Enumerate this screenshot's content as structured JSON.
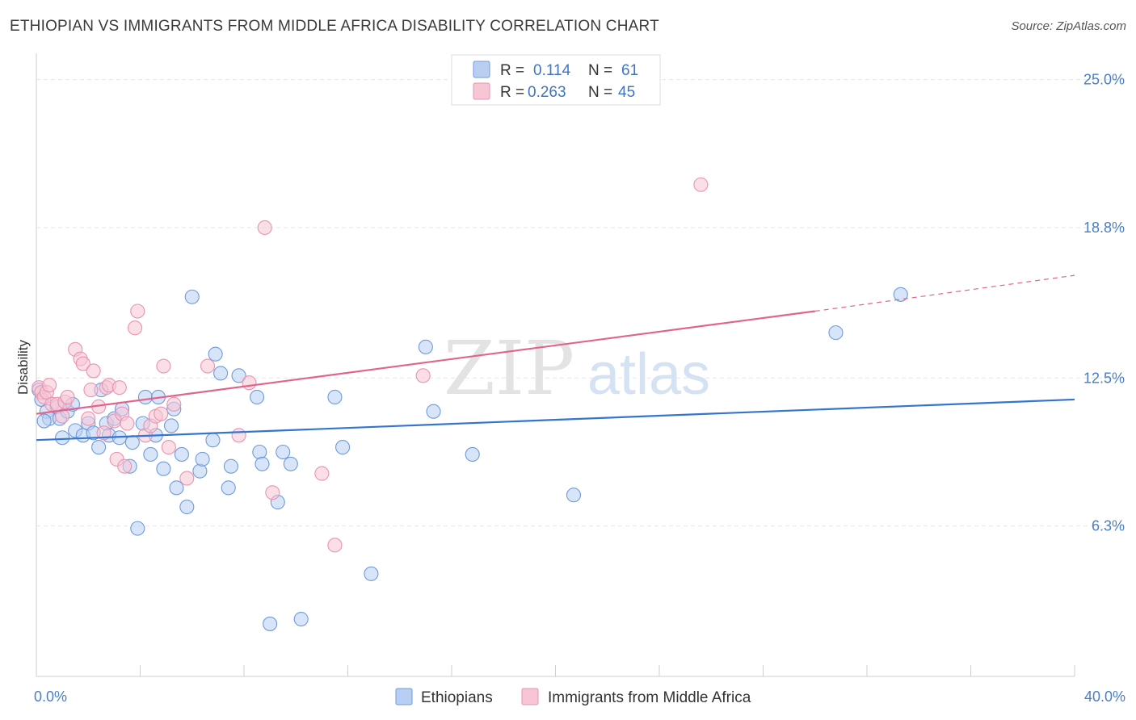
{
  "title": "ETHIOPIAN VS IMMIGRANTS FROM MIDDLE AFRICA DISABILITY CORRELATION CHART",
  "source": "Source: ZipAtlas.com",
  "watermark": {
    "zip": "ZIP",
    "atlas": "atlas"
  },
  "colors": {
    "blue_fill": "#b8cff3",
    "blue_stroke": "#6f9bd9",
    "blue_line": "#3475d0",
    "pink_fill": "#f7c5d4",
    "pink_stroke": "#ea93b0",
    "pink_line": "#e0648c",
    "tick_label": "#4a7ec7",
    "grid": "#e6e6e6"
  },
  "legend": {
    "rows": [
      {
        "r_label": "R =",
        "r_value": "0.114",
        "n_label": "N =",
        "n_value": "61"
      },
      {
        "r_label": "R =",
        "r_value": "0.263",
        "n_label": "N =",
        "n_value": "45"
      }
    ]
  },
  "bottom_legend": [
    "Ethiopians",
    "Immigrants from Middle Africa"
  ],
  "chart_data": {
    "type": "scatter",
    "title": "ETHIOPIAN VS IMMIGRANTS FROM MIDDLE AFRICA DISABILITY CORRELATION CHART",
    "xlabel": "",
    "ylabel": "Disability",
    "xlim": [
      0,
      40
    ],
    "ylim": [
      0,
      25.9
    ],
    "x_tick_labels": [
      "0.0%",
      "40.0%"
    ],
    "y_ticks": [
      6.3,
      12.5,
      18.8,
      25.0
    ],
    "y_tick_labels": [
      "6.3%",
      "12.5%",
      "18.8%",
      "25.0%"
    ],
    "grid": true,
    "legend_position": "top-center",
    "series": [
      {
        "name": "Ethiopians",
        "color": "#b8cff3",
        "r": 0.114,
        "n": 61,
        "trend": {
          "x0": 0,
          "y0": 9.9,
          "x1": 40,
          "y1": 11.6
        },
        "points": [
          [
            0.1,
            12.0
          ],
          [
            0.2,
            11.6
          ],
          [
            0.4,
            11.1
          ],
          [
            0.5,
            10.8
          ],
          [
            0.8,
            11.3
          ],
          [
            0.9,
            10.8
          ],
          [
            1.0,
            10.0
          ],
          [
            1.2,
            11.1
          ],
          [
            1.4,
            11.4
          ],
          [
            1.5,
            10.3
          ],
          [
            1.8,
            10.1
          ],
          [
            2.0,
            10.6
          ],
          [
            2.2,
            10.2
          ],
          [
            2.4,
            9.6
          ],
          [
            2.5,
            12.0
          ],
          [
            2.7,
            10.6
          ],
          [
            2.8,
            10.1
          ],
          [
            3.0,
            10.8
          ],
          [
            3.2,
            10.0
          ],
          [
            3.3,
            11.2
          ],
          [
            3.6,
            8.8
          ],
          [
            3.7,
            9.8
          ],
          [
            3.9,
            6.2
          ],
          [
            4.1,
            10.6
          ],
          [
            4.2,
            11.7
          ],
          [
            4.4,
            9.3
          ],
          [
            4.6,
            10.1
          ],
          [
            4.7,
            11.7
          ],
          [
            4.9,
            8.7
          ],
          [
            5.2,
            10.5
          ],
          [
            5.3,
            11.2
          ],
          [
            5.4,
            7.9
          ],
          [
            5.6,
            9.3
          ],
          [
            5.8,
            7.1
          ],
          [
            6.0,
            15.9
          ],
          [
            6.3,
            8.6
          ],
          [
            6.4,
            9.1
          ],
          [
            6.8,
            9.9
          ],
          [
            6.9,
            13.5
          ],
          [
            7.1,
            12.7
          ],
          [
            7.4,
            7.9
          ],
          [
            7.5,
            8.8
          ],
          [
            7.8,
            12.6
          ],
          [
            8.5,
            11.7
          ],
          [
            8.6,
            9.4
          ],
          [
            8.7,
            8.9
          ],
          [
            9.0,
            2.2
          ],
          [
            9.3,
            7.3
          ],
          [
            9.5,
            9.4
          ],
          [
            9.8,
            8.9
          ],
          [
            10.2,
            2.4
          ],
          [
            11.5,
            11.7
          ],
          [
            11.8,
            9.6
          ],
          [
            12.9,
            4.3
          ],
          [
            15.0,
            13.8
          ],
          [
            15.3,
            11.1
          ],
          [
            16.8,
            9.3
          ],
          [
            20.7,
            7.6
          ],
          [
            30.8,
            14.4
          ],
          [
            33.3,
            16.0
          ],
          [
            0.3,
            10.7
          ]
        ]
      },
      {
        "name": "Immigrants from Middle Africa",
        "color": "#f7c5d4",
        "r": 0.263,
        "n": 45,
        "trend": {
          "x0": 0,
          "y0": 11.0,
          "x1": 30,
          "y1": 15.3,
          "dash_x1": 40,
          "dash_y1": 16.8
        },
        "points": [
          [
            0.1,
            12.1
          ],
          [
            0.2,
            11.9
          ],
          [
            0.3,
            11.7
          ],
          [
            0.4,
            11.9
          ],
          [
            0.5,
            12.2
          ],
          [
            0.6,
            11.4
          ],
          [
            0.8,
            11.4
          ],
          [
            1.0,
            10.9
          ],
          [
            1.1,
            11.5
          ],
          [
            1.2,
            11.7
          ],
          [
            1.5,
            13.7
          ],
          [
            1.7,
            13.3
          ],
          [
            1.8,
            13.1
          ],
          [
            2.0,
            10.8
          ],
          [
            2.1,
            12.0
          ],
          [
            2.2,
            12.8
          ],
          [
            2.4,
            11.3
          ],
          [
            2.6,
            10.2
          ],
          [
            2.7,
            12.1
          ],
          [
            2.8,
            12.2
          ],
          [
            3.0,
            10.7
          ],
          [
            3.1,
            9.1
          ],
          [
            3.2,
            12.1
          ],
          [
            3.3,
            11.0
          ],
          [
            3.4,
            8.8
          ],
          [
            3.5,
            10.6
          ],
          [
            3.8,
            14.6
          ],
          [
            3.9,
            15.3
          ],
          [
            4.2,
            10.1
          ],
          [
            4.4,
            10.5
          ],
          [
            4.6,
            10.9
          ],
          [
            4.8,
            11.0
          ],
          [
            4.9,
            13.0
          ],
          [
            5.1,
            9.6
          ],
          [
            5.3,
            11.4
          ],
          [
            5.8,
            8.3
          ],
          [
            6.6,
            13.0
          ],
          [
            7.8,
            10.1
          ],
          [
            8.2,
            12.3
          ],
          [
            8.8,
            18.8
          ],
          [
            9.1,
            7.7
          ],
          [
            11.0,
            8.5
          ],
          [
            11.5,
            5.5
          ],
          [
            14.9,
            12.6
          ],
          [
            25.6,
            20.6
          ]
        ]
      }
    ]
  }
}
